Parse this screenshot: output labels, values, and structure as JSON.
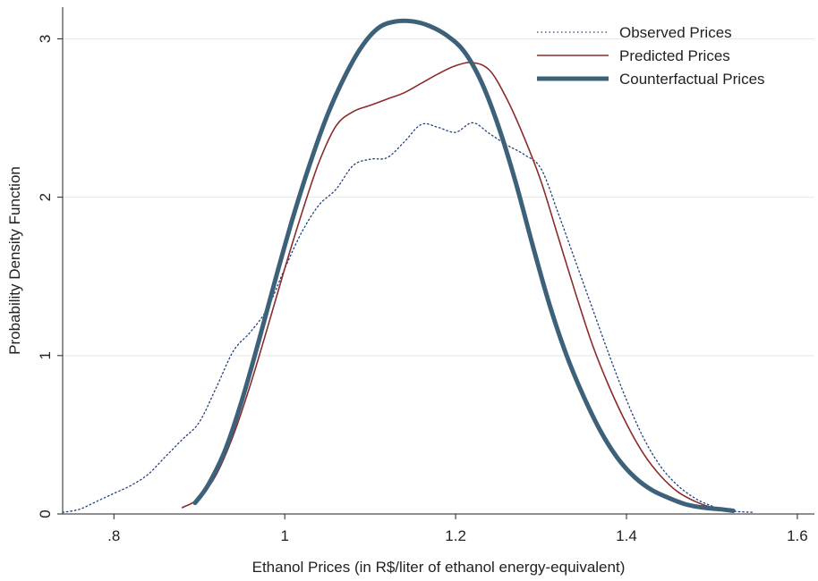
{
  "chart_data": {
    "type": "line",
    "title": "",
    "xlabel": "Ethanol Prices (in R$/liter of ethanol energy-equivalent)",
    "ylabel": "Probability Density Function",
    "xlim": [
      0.74,
      1.62
    ],
    "ylim": [
      0,
      3.2
    ],
    "x_ticks": [
      0.8,
      1.0,
      1.2,
      1.4,
      1.6
    ],
    "x_tick_labels": [
      ".8",
      "1",
      "1.2",
      "1.4",
      "1.6"
    ],
    "y_ticks": [
      0,
      1,
      2,
      3
    ],
    "y_tick_labels": [
      "0",
      "1",
      "2",
      "3"
    ],
    "grid": "horizontal",
    "legend_position": "top-right",
    "series": [
      {
        "name": "Observed Prices",
        "color": "#1f3f7f",
        "style": "dotted",
        "x": [
          0.74,
          0.76,
          0.78,
          0.8,
          0.82,
          0.84,
          0.86,
          0.88,
          0.9,
          0.92,
          0.94,
          0.96,
          0.98,
          1.0,
          1.02,
          1.04,
          1.06,
          1.08,
          1.1,
          1.12,
          1.14,
          1.16,
          1.18,
          1.2,
          1.22,
          1.24,
          1.26,
          1.28,
          1.3,
          1.32,
          1.34,
          1.36,
          1.38,
          1.4,
          1.42,
          1.44,
          1.46,
          1.48,
          1.5,
          1.52,
          1.55
        ],
        "y": [
          0.01,
          0.03,
          0.08,
          0.13,
          0.18,
          0.25,
          0.36,
          0.47,
          0.58,
          0.8,
          1.03,
          1.15,
          1.3,
          1.55,
          1.78,
          1.95,
          2.05,
          2.2,
          2.24,
          2.25,
          2.35,
          2.46,
          2.44,
          2.41,
          2.47,
          2.4,
          2.33,
          2.27,
          2.18,
          1.9,
          1.6,
          1.3,
          1.0,
          0.72,
          0.48,
          0.3,
          0.18,
          0.1,
          0.05,
          0.02,
          0.01
        ]
      },
      {
        "name": "Predicted Prices",
        "color": "#8b2b2b",
        "style": "solid",
        "x": [
          0.88,
          0.9,
          0.92,
          0.94,
          0.96,
          0.98,
          1.0,
          1.02,
          1.04,
          1.06,
          1.08,
          1.1,
          1.12,
          1.14,
          1.16,
          1.18,
          1.2,
          1.22,
          1.24,
          1.26,
          1.28,
          1.3,
          1.32,
          1.34,
          1.36,
          1.38,
          1.4,
          1.42,
          1.44,
          1.46,
          1.48,
          1.5,
          1.52
        ],
        "y": [
          0.04,
          0.1,
          0.25,
          0.5,
          0.82,
          1.18,
          1.55,
          1.9,
          2.22,
          2.45,
          2.54,
          2.58,
          2.62,
          2.66,
          2.72,
          2.78,
          2.83,
          2.85,
          2.8,
          2.62,
          2.38,
          2.1,
          1.75,
          1.4,
          1.07,
          0.8,
          0.57,
          0.38,
          0.24,
          0.14,
          0.08,
          0.04,
          0.02
        ]
      },
      {
        "name": "Counterfactual Prices",
        "color": "#3c6179",
        "style": "thick",
        "x": [
          0.895,
          0.91,
          0.93,
          0.95,
          0.97,
          0.99,
          1.01,
          1.03,
          1.05,
          1.07,
          1.09,
          1.11,
          1.13,
          1.15,
          1.17,
          1.19,
          1.21,
          1.23,
          1.25,
          1.27,
          1.29,
          1.31,
          1.33,
          1.35,
          1.37,
          1.39,
          1.41,
          1.43,
          1.45,
          1.47,
          1.49,
          1.51,
          1.525
        ],
        "y": [
          0.07,
          0.18,
          0.4,
          0.72,
          1.1,
          1.5,
          1.88,
          2.22,
          2.52,
          2.76,
          2.95,
          3.07,
          3.11,
          3.11,
          3.08,
          3.02,
          2.92,
          2.73,
          2.45,
          2.1,
          1.7,
          1.32,
          1.0,
          0.74,
          0.52,
          0.35,
          0.23,
          0.15,
          0.1,
          0.06,
          0.04,
          0.03,
          0.02
        ]
      }
    ]
  }
}
